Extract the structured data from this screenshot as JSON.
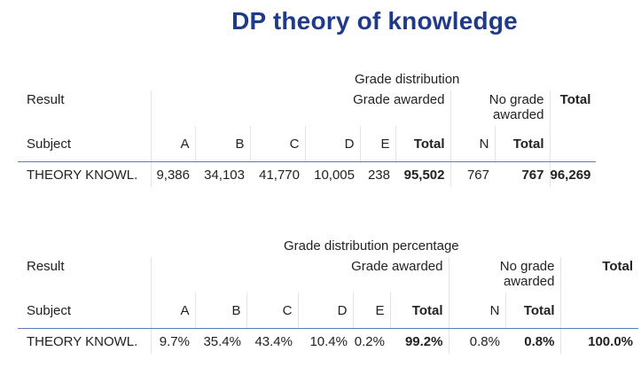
{
  "title": "DP theory of knowledge",
  "table1": {
    "caption": "Grade distribution",
    "result_label": "Result",
    "subject_label": "Subject",
    "group_awarded": "Grade awarded",
    "group_no_grade": "No grade awarded",
    "group_total": "Total",
    "columns": [
      "A",
      "B",
      "C",
      "D",
      "E",
      "Total",
      "N",
      "Total"
    ],
    "row": {
      "subject": "THEORY KNOWL.",
      "values": [
        "9,386",
        "34,103",
        "41,770",
        "10,005",
        "238",
        "95,502",
        "767",
        "767",
        "96,269"
      ]
    }
  },
  "table2": {
    "caption": "Grade distribution percentage",
    "result_label": "Result",
    "subject_label": "Subject",
    "group_awarded": "Grade awarded",
    "group_no_grade": "No grade awarded",
    "group_total": "Total",
    "columns": [
      "A",
      "B",
      "C",
      "D",
      "E",
      "Total",
      "N",
      "Total"
    ],
    "row": {
      "subject": "THEORY KNOWL.",
      "values": [
        "9.7%",
        "35.4%",
        "43.4%",
        "10.4%",
        "0.2%",
        "99.2%",
        "0.8%",
        "0.8%",
        "100.0%"
      ]
    }
  }
}
